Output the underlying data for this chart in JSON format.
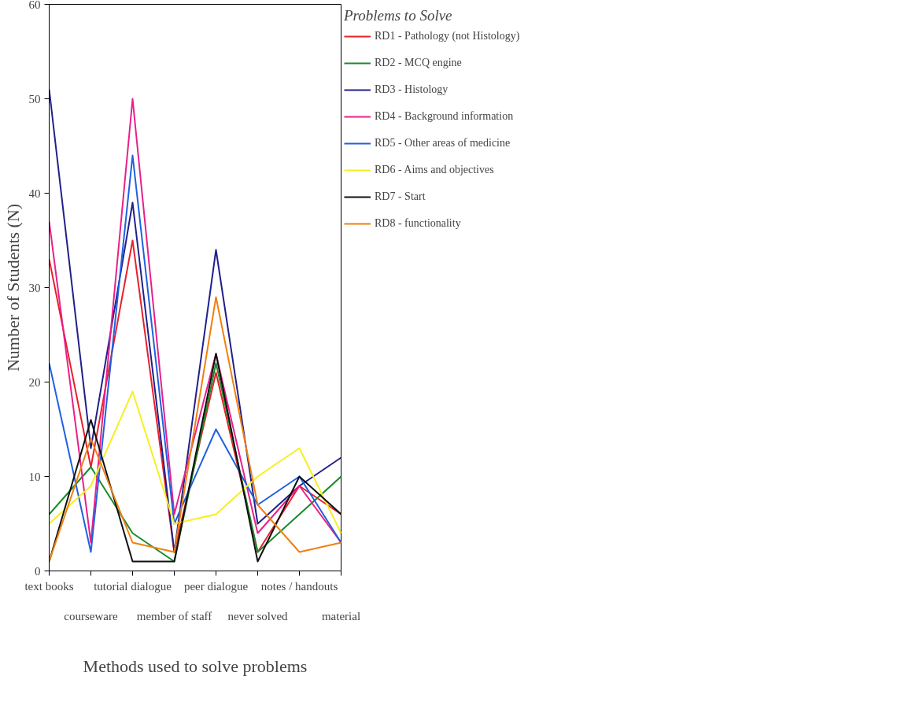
{
  "chart_data": {
    "type": "line",
    "xlabel": "Methods used to solve problems",
    "ylabel": "Number of Students (N)",
    "legend_title": "Problems to Solve",
    "categories": [
      "text books",
      "courseware",
      "tutorial dialogue",
      "member of staff",
      "peer dialogue",
      "never solved",
      "notes / handouts",
      "material"
    ],
    "ylim": [
      0,
      60
    ],
    "yticks": [
      0,
      10,
      20,
      30,
      40,
      50,
      60
    ],
    "grid": false,
    "legend": "right",
    "marker": "none",
    "line_style": "solid",
    "series": [
      {
        "name": "RD1 - Pathology (not Histology)",
        "color": "#e8202a",
        "values": [
          33,
          11,
          35,
          2,
          21,
          2,
          9,
          6
        ]
      },
      {
        "name": "RD2 - MCQ engine",
        "color": "#1a8a2a",
        "values": [
          6,
          11,
          4,
          1,
          22,
          2,
          6,
          10
        ]
      },
      {
        "name": "RD3 - Histology",
        "color": "#20208a",
        "values": [
          51,
          13,
          39,
          2,
          34,
          5,
          9,
          12
        ]
      },
      {
        "name": "RD4 - Background information",
        "color": "#e8208a",
        "values": [
          37,
          3,
          50,
          6,
          23,
          4,
          9,
          3
        ]
      },
      {
        "name": "RD5 - Other areas of medicine",
        "color": "#2060e0",
        "values": [
          22,
          2,
          44,
          5,
          15,
          7,
          10,
          3
        ]
      },
      {
        "name": "RD6 - Aims and objectives",
        "color": "#f5f020",
        "values": [
          5,
          9,
          19,
          5,
          6,
          10,
          13,
          4
        ]
      },
      {
        "name": "RD7 - Start",
        "color": "#101010",
        "values": [
          1,
          16,
          1,
          1,
          23,
          1,
          10,
          6
        ]
      },
      {
        "name": "RD8 - functionality",
        "color": "#f08010",
        "values": [
          1,
          14,
          3,
          2,
          29,
          7,
          2,
          3
        ]
      }
    ]
  }
}
